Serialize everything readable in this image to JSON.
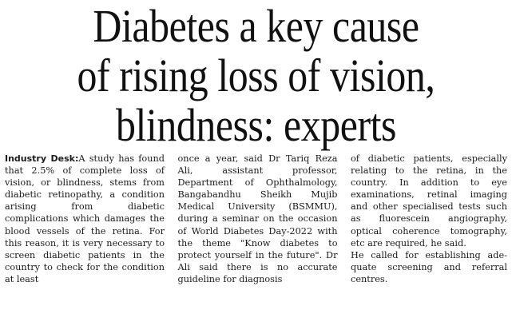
{
  "article": {
    "headline": {
      "line1": "Diabetes a key cause",
      "line2": "of rising loss of vision,",
      "line3": "blindness: experts"
    },
    "byline": "Industry Desk:",
    "columns": {
      "col1": "A study has found that 2.5% of complete loss of vision, or blindness, stems from diabetic retinopa­thy, a condition arising from diabetic complications which damages the blood vessels of the retina. For this reason, it is very necessary to screen diabet­ic patients in the country to check for the condition at least",
      "col2": "once a year, said Dr Tariq Reza Ali, assistant professor, Department of Ophthalmology, Bangabandhu Sheikh Mujib Medical University (BSMMU), during a seminar on the occa­sion of World Diabetes Day-2022 with the theme \"Know dia­betes to protect yourself in the future\". Dr Ali said there is no accurate guideline for diagnosis",
      "col3_p1": "of diabetic patients, especially relating to the retina, in the country. In addition to eye examinations, retinal imaging and other specialised tests such as fluorescein angiography, optical coherence tomography, etc are required, he said.",
      "col3_p2": "He called for establishing ade­quate screening and referral centres."
    }
  }
}
